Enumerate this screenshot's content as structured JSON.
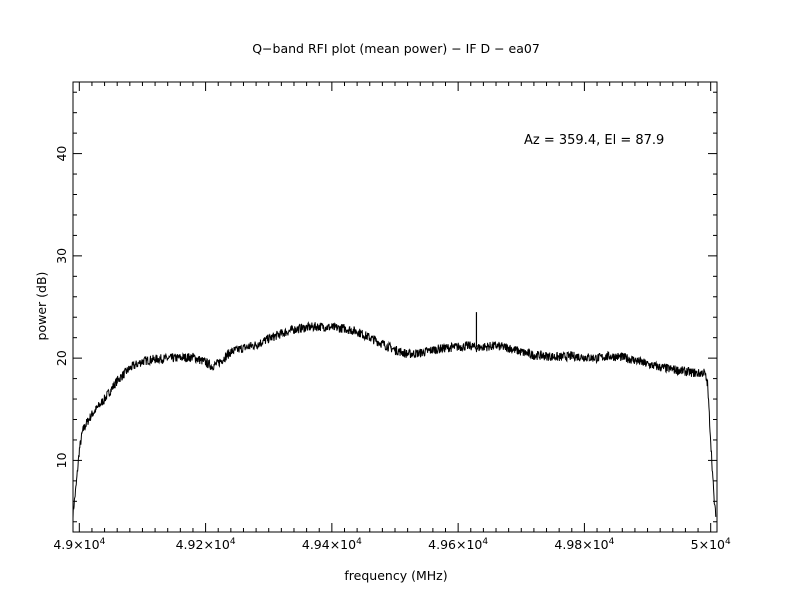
{
  "chart_data": {
    "type": "line",
    "title": "Q−band RFI plot (mean power) − IF D − ea07",
    "xlabel": "frequency (MHz)",
    "ylabel": "power (dB)",
    "annotation": "Az = 359.4, El = 87.9",
    "xlim": [
      48990,
      50010
    ],
    "ylim": [
      3,
      47
    ],
    "x_ticks": [
      {
        "value": 49000,
        "mant": "4.9",
        "exp": "4"
      },
      {
        "value": 49200,
        "mant": "4.92",
        "exp": "4"
      },
      {
        "value": 49400,
        "mant": "4.94",
        "exp": "4"
      },
      {
        "value": 49600,
        "mant": "4.96",
        "exp": "4"
      },
      {
        "value": 49800,
        "mant": "4.98",
        "exp": "4"
      },
      {
        "value": 50000,
        "mant": "5",
        "exp": "4"
      }
    ],
    "y_ticks": [
      {
        "value": 10,
        "label": "10"
      },
      {
        "value": 20,
        "label": "20"
      },
      {
        "value": 30,
        "label": "30"
      },
      {
        "value": 40,
        "label": "40"
      }
    ],
    "series": [
      {
        "x": [
          48990,
          48995,
          49000,
          49005,
          49010,
          49020,
          49040,
          49060,
          49080,
          49100,
          49120,
          49150,
          49180,
          49200,
          49210,
          49220,
          49240,
          49260,
          49280,
          49300,
          49320,
          49340,
          49360,
          49380,
          49400,
          49420,
          49440,
          49460,
          49480,
          49500,
          49520,
          49540,
          49560,
          49580,
          49600,
          49620,
          49630,
          49640,
          49660,
          49680,
          49700,
          49720,
          49740,
          49760,
          49780,
          49800,
          49820,
          49840,
          49860,
          49880,
          49900,
          49920,
          49940,
          49960,
          49970,
          49980,
          49990,
          49995,
          50000,
          50005,
          50008
        ],
        "y": [
          4.8,
          7.5,
          11.0,
          12.8,
          13.5,
          14.5,
          16.0,
          17.8,
          19.0,
          19.7,
          19.9,
          20.0,
          20.1,
          19.6,
          19.2,
          19.5,
          20.6,
          21.0,
          21.3,
          21.9,
          22.4,
          22.8,
          23.0,
          23.1,
          23.0,
          22.9,
          22.6,
          22.0,
          21.4,
          20.8,
          20.4,
          20.5,
          20.8,
          21.0,
          21.1,
          21.2,
          21.0,
          21.1,
          21.2,
          21.0,
          20.6,
          20.3,
          20.2,
          20.1,
          20.2,
          20.1,
          20.0,
          20.2,
          20.1,
          19.8,
          19.4,
          19.1,
          18.9,
          18.7,
          18.6,
          18.5,
          18.6,
          17.5,
          12.0,
          6.5,
          4.5
        ],
        "spike": {
          "x": 49629,
          "y": 24.5
        }
      }
    ]
  }
}
